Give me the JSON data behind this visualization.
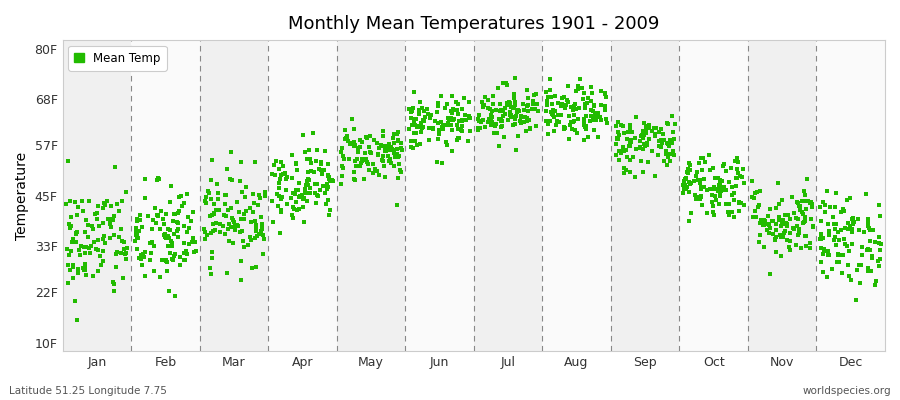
{
  "title": "Monthly Mean Temperatures 1901 - 2009",
  "ylabel": "Temperature",
  "months": [
    "Jan",
    "Feb",
    "Mar",
    "Apr",
    "May",
    "Jun",
    "Jul",
    "Aug",
    "Sep",
    "Oct",
    "Nov",
    "Dec"
  ],
  "yticks": [
    10,
    22,
    33,
    45,
    57,
    68,
    80
  ],
  "ytick_labels": [
    "10F",
    "22F",
    "33F",
    "45F",
    "57F",
    "68F",
    "80F"
  ],
  "ylim": [
    8,
    82
  ],
  "dot_color": "#22bb00",
  "dot_size": 5,
  "background_color": "#f4f4f4",
  "band_colors": [
    "#f0f0f0",
    "#fafafa"
  ],
  "legend_label": "Mean Temp",
  "footer_left": "Latitude 51.25 Longitude 7.75",
  "footer_right": "worldspecies.org",
  "num_years": 109,
  "mean_temps_F": [
    34.0,
    35.0,
    40.0,
    48.0,
    55.0,
    62.0,
    65.0,
    64.5,
    57.5,
    47.5,
    39.0,
    34.5
  ],
  "std_temps_F": [
    7.0,
    6.5,
    5.5,
    4.5,
    3.5,
    3.2,
    3.2,
    3.2,
    3.5,
    4.0,
    4.5,
    5.5
  ],
  "seed": 42
}
